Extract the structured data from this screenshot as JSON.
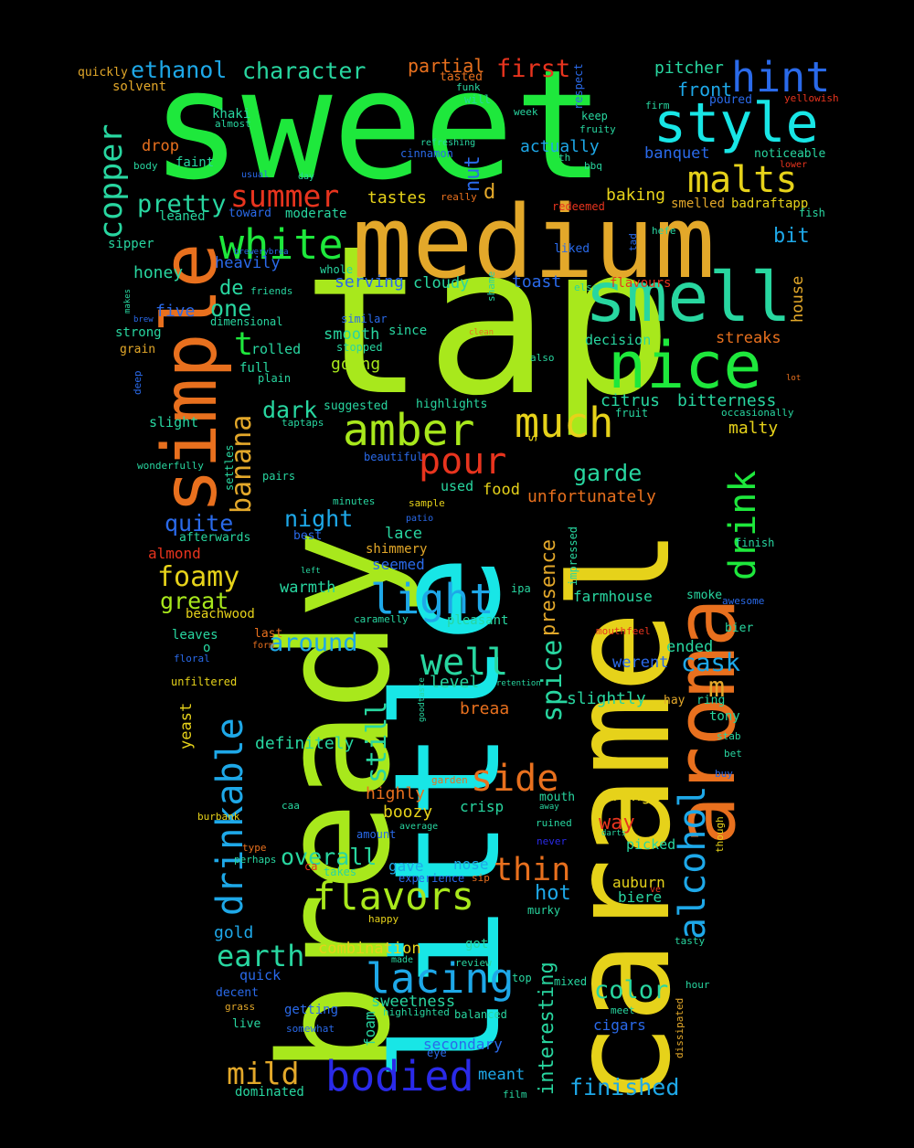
{
  "palette": {
    "green": "#1ee83c",
    "lime": "#a8e81c",
    "yellow": "#e6d21a",
    "gold": "#e3a82a",
    "orange": "#e8701e",
    "red": "#e8341e",
    "cyan": "#18e6e6",
    "teal": "#28d6a0",
    "sky": "#1ea8e8",
    "blue": "#2a6aea",
    "indigo": "#2a2ae8",
    "mint": "#3ae070"
  },
  "words": [
    {
      "t": "sweet",
      "c": "green"
    },
    {
      "t": "tap",
      "c": "lime"
    },
    {
      "t": "medium",
      "c": "gold"
    },
    {
      "t": "bready",
      "c": "lime"
    },
    {
      "t": "little",
      "c": "cyan"
    },
    {
      "t": "caramel",
      "c": "yellow"
    },
    {
      "t": "aroma",
      "c": "orange"
    },
    {
      "t": "simple",
      "c": "orange"
    },
    {
      "t": "smell",
      "c": "teal"
    },
    {
      "t": "nice",
      "c": "green"
    },
    {
      "t": "style",
      "c": "cyan"
    },
    {
      "t": "hint",
      "c": "blue"
    },
    {
      "t": "malts",
      "c": "yellow"
    },
    {
      "t": "amber",
      "c": "lime"
    },
    {
      "t": "much",
      "c": "yellow"
    },
    {
      "t": "pour",
      "c": "red"
    },
    {
      "t": "white",
      "c": "green"
    },
    {
      "t": "summer",
      "c": "red"
    },
    {
      "t": "pretty",
      "c": "teal"
    },
    {
      "t": "copper",
      "c": "teal"
    },
    {
      "t": "ethanol",
      "c": "sky"
    },
    {
      "t": "character",
      "c": "teal"
    },
    {
      "t": "partial",
      "c": "orange"
    },
    {
      "t": "first",
      "c": "red"
    },
    {
      "t": "pitcher",
      "c": "teal"
    },
    {
      "t": "front",
      "c": "sky"
    },
    {
      "t": "drinkable",
      "c": "sky"
    },
    {
      "t": "banana",
      "c": "gold"
    },
    {
      "t": "alcohol",
      "c": "sky"
    },
    {
      "t": "drink",
      "c": "green"
    },
    {
      "t": "flavors",
      "c": "lime"
    },
    {
      "t": "lacing",
      "c": "sky"
    },
    {
      "t": "light",
      "c": "sky"
    },
    {
      "t": "well",
      "c": "teal"
    },
    {
      "t": "side",
      "c": "orange"
    },
    {
      "t": "thin",
      "c": "orange"
    },
    {
      "t": "bodied",
      "c": "indigo"
    },
    {
      "t": "mild",
      "c": "gold"
    },
    {
      "t": "foamy",
      "c": "yellow"
    },
    {
      "t": "great",
      "c": "lime"
    },
    {
      "t": "earth",
      "c": "teal"
    },
    {
      "t": "around",
      "c": "sky"
    },
    {
      "t": "cask",
      "c": "sky"
    },
    {
      "t": "m",
      "c": "gold"
    },
    {
      "t": "finished",
      "c": "sky"
    },
    {
      "t": "color",
      "c": "teal"
    },
    {
      "t": "overall",
      "c": "teal"
    },
    {
      "t": "still",
      "c": "teal"
    },
    {
      "t": "spice",
      "c": "teal"
    },
    {
      "t": "presence",
      "c": "gold"
    },
    {
      "t": "interesting",
      "c": "teal"
    },
    {
      "t": "garde",
      "c": "teal"
    },
    {
      "t": "unfortunately",
      "c": "orange"
    },
    {
      "t": "quite",
      "c": "blue"
    },
    {
      "t": "night",
      "c": "sky"
    },
    {
      "t": "one",
      "c": "teal"
    },
    {
      "t": "de",
      "c": "teal"
    },
    {
      "t": "t",
      "c": "green"
    },
    {
      "t": "dark",
      "c": "teal"
    },
    {
      "t": "bitterness",
      "c": "teal"
    },
    {
      "t": "citrus",
      "c": "teal"
    },
    {
      "t": "malty",
      "c": "yellow"
    },
    {
      "t": "tastes",
      "c": "yellow"
    },
    {
      "t": "baking",
      "c": "yellow"
    },
    {
      "t": "nut",
      "c": "blue"
    },
    {
      "t": "d",
      "c": "gold"
    },
    {
      "t": "bit",
      "c": "sky"
    },
    {
      "t": "toast",
      "c": "blue"
    },
    {
      "t": "serving",
      "c": "blue"
    },
    {
      "t": "cloudy",
      "c": "teal"
    },
    {
      "t": "smooth",
      "c": "teal"
    },
    {
      "t": "going",
      "c": "lime"
    },
    {
      "t": "streaks",
      "c": "orange"
    },
    {
      "t": "decision",
      "c": "teal"
    },
    {
      "t": "actually",
      "c": "sky"
    },
    {
      "t": "banquet",
      "c": "blue"
    },
    {
      "t": "honey",
      "c": "teal"
    },
    {
      "t": "heavily",
      "c": "blue"
    },
    {
      "t": "five",
      "c": "blue"
    },
    {
      "t": "house",
      "c": "gold"
    },
    {
      "t": "drop",
      "c": "orange"
    },
    {
      "t": "faint",
      "c": "teal"
    },
    {
      "t": "khaki",
      "c": "teal"
    },
    {
      "t": "sipper",
      "c": "teal"
    },
    {
      "t": "leaned",
      "c": "teal"
    },
    {
      "t": "toward",
      "c": "blue"
    },
    {
      "t": "moderate",
      "c": "teal"
    },
    {
      "t": "smelled",
      "c": "gold"
    },
    {
      "t": "badraftapp",
      "c": "yellow"
    },
    {
      "t": "solvent",
      "c": "gold"
    },
    {
      "t": "quickly",
      "c": "gold"
    },
    {
      "t": "rolled",
      "c": "teal"
    },
    {
      "t": "full",
      "c": "teal"
    },
    {
      "t": "strong",
      "c": "teal"
    },
    {
      "t": "grain",
      "c": "gold"
    },
    {
      "t": "slight",
      "c": "teal"
    },
    {
      "t": "almond",
      "c": "red"
    },
    {
      "t": "afterwards",
      "c": "teal"
    },
    {
      "t": "best",
      "c": "blue"
    },
    {
      "t": "lace",
      "c": "teal"
    },
    {
      "t": "shimmery",
      "c": "gold"
    },
    {
      "t": "seemed",
      "c": "blue"
    },
    {
      "t": "warmth",
      "c": "teal"
    },
    {
      "t": "food",
      "c": "yellow"
    },
    {
      "t": "used",
      "c": "teal"
    },
    {
      "t": "s",
      "c": "yellow"
    },
    {
      "t": "highlights",
      "c": "teal"
    },
    {
      "t": "suggested",
      "c": "teal"
    },
    {
      "t": "pleasant",
      "c": "teal"
    },
    {
      "t": "farmhouse",
      "c": "teal"
    },
    {
      "t": "level",
      "c": "teal"
    },
    {
      "t": "breaa",
      "c": "orange"
    },
    {
      "t": "slightly",
      "c": "teal"
    },
    {
      "t": "werent",
      "c": "blue"
    },
    {
      "t": "ended",
      "c": "teal"
    },
    {
      "t": "definitely",
      "c": "teal"
    },
    {
      "t": "yeast",
      "c": "yellow"
    },
    {
      "t": "beachwood",
      "c": "yellow"
    },
    {
      "t": "leaves",
      "c": "teal"
    },
    {
      "t": "o",
      "c": "teal"
    },
    {
      "t": "highly",
      "c": "orange"
    },
    {
      "t": "boozy",
      "c": "yellow"
    },
    {
      "t": "crisp",
      "c": "teal"
    },
    {
      "t": "orange",
      "c": "yellow"
    },
    {
      "t": "way",
      "c": "red"
    },
    {
      "t": "gave",
      "c": "sky"
    },
    {
      "t": "nose",
      "c": "sky"
    },
    {
      "t": "hot",
      "c": "sky"
    },
    {
      "t": "auburn",
      "c": "yellow"
    },
    {
      "t": "biere",
      "c": "teal"
    },
    {
      "t": "gold",
      "c": "sky"
    },
    {
      "t": "combination",
      "c": "yellow"
    },
    {
      "t": "got",
      "c": "teal"
    },
    {
      "t": "quick",
      "c": "blue"
    },
    {
      "t": "decent",
      "c": "blue"
    },
    {
      "t": "live",
      "c": "teal"
    },
    {
      "t": "getting",
      "c": "blue"
    },
    {
      "t": "sweetness",
      "c": "teal"
    },
    {
      "t": "foam",
      "c": "teal"
    },
    {
      "t": "secondary",
      "c": "blue"
    },
    {
      "t": "meant",
      "c": "sky"
    },
    {
      "t": "dominated",
      "c": "teal"
    },
    {
      "t": "cigars",
      "c": "blue"
    },
    {
      "t": "picked",
      "c": "teal"
    },
    {
      "t": "tony",
      "c": "teal"
    },
    {
      "t": "bier",
      "c": "teal"
    },
    {
      "t": "ring",
      "c": "teal"
    },
    {
      "t": "hay",
      "c": "gold"
    },
    {
      "t": "smoke",
      "c": "teal"
    },
    {
      "t": "finish",
      "c": "teal"
    },
    {
      "t": "impressed",
      "c": "teal"
    },
    {
      "t": "retention",
      "c": "teal"
    },
    {
      "t": "goodtaste",
      "c": "teal"
    },
    {
      "t": "ipa",
      "c": "teal"
    },
    {
      "t": "caramelly",
      "c": "teal"
    },
    {
      "t": "last",
      "c": "orange"
    },
    {
      "t": "form",
      "c": "orange"
    },
    {
      "t": "floral",
      "c": "blue"
    },
    {
      "t": "unfiltered",
      "c": "yellow"
    },
    {
      "t": "mouthfeel",
      "c": "red"
    },
    {
      "t": "awesome",
      "c": "blue"
    },
    {
      "t": "stab",
      "c": "teal"
    },
    {
      "t": "bet",
      "c": "teal"
    },
    {
      "t": "buy",
      "c": "blue"
    },
    {
      "t": "though",
      "c": "yellow"
    },
    {
      "t": "mouth",
      "c": "teal"
    },
    {
      "t": "darts",
      "c": "teal"
    },
    {
      "t": "ruined",
      "c": "teal"
    },
    {
      "t": "away",
      "c": "teal"
    },
    {
      "t": "never",
      "c": "indigo"
    },
    {
      "t": "garden",
      "c": "orange"
    },
    {
      "t": "caa",
      "c": "teal"
    },
    {
      "t": "burbank",
      "c": "yellow"
    },
    {
      "t": "average",
      "c": "teal"
    },
    {
      "t": "amount",
      "c": "blue"
    },
    {
      "t": "type",
      "c": "orange"
    },
    {
      "t": "perhaps",
      "c": "teal"
    },
    {
      "t": "ca",
      "c": "red"
    },
    {
      "t": "takes",
      "c": "teal"
    },
    {
      "t": "experience",
      "c": "blue"
    },
    {
      "t": "sip",
      "c": "orange"
    },
    {
      "t": "ve",
      "c": "red"
    },
    {
      "t": "murky",
      "c": "teal"
    },
    {
      "t": "happy",
      "c": "yellow"
    },
    {
      "t": "made",
      "c": "teal"
    },
    {
      "t": "review",
      "c": "teal"
    },
    {
      "t": "top",
      "c": "teal"
    },
    {
      "t": "mixed",
      "c": "teal"
    },
    {
      "t": "tasty",
      "c": "teal"
    },
    {
      "t": "hour",
      "c": "teal"
    },
    {
      "t": "grass",
      "c": "gold"
    },
    {
      "t": "somewhat",
      "c": "blue"
    },
    {
      "t": "highlighted",
      "c": "teal"
    },
    {
      "t": "balanced",
      "c": "teal"
    },
    {
      "t": "meet",
      "c": "teal"
    },
    {
      "t": "dissipated",
      "c": "gold"
    },
    {
      "t": "eye",
      "c": "blue"
    },
    {
      "t": "film",
      "c": "teal"
    },
    {
      "t": "tasted",
      "c": "orange"
    },
    {
      "t": "funk",
      "c": "teal"
    },
    {
      "t": "will",
      "c": "teal"
    },
    {
      "t": "week",
      "c": "teal"
    },
    {
      "t": "respect",
      "c": "blue"
    },
    {
      "t": "keep",
      "c": "teal"
    },
    {
      "t": "fruity",
      "c": "teal"
    },
    {
      "t": "bbq",
      "c": "teal"
    },
    {
      "t": "th",
      "c": "teal"
    },
    {
      "t": "refreshing",
      "c": "teal"
    },
    {
      "t": "cinnamon",
      "c": "blue"
    },
    {
      "t": "firm",
      "c": "teal"
    },
    {
      "t": "poured",
      "c": "blue"
    },
    {
      "t": "yellowish",
      "c": "red"
    },
    {
      "t": "noticeable",
      "c": "teal"
    },
    {
      "t": "lower",
      "c": "red"
    },
    {
      "t": "fish",
      "c": "teal"
    },
    {
      "t": "almost",
      "c": "teal"
    },
    {
      "t": "body",
      "c": "teal"
    },
    {
      "t": "usual",
      "c": "blue"
    },
    {
      "t": "day",
      "c": "teal"
    },
    {
      "t": "really",
      "c": "orange"
    },
    {
      "t": "redeemed",
      "c": "red"
    },
    {
      "t": "liked",
      "c": "blue"
    },
    {
      "t": "tad",
      "c": "blue"
    },
    {
      "t": "hefe",
      "c": "teal"
    },
    {
      "t": "flavours",
      "c": "red"
    },
    {
      "t": "else",
      "c": "teal"
    },
    {
      "t": "brewerybrea",
      "c": "blue"
    },
    {
      "t": "whole",
      "c": "teal"
    },
    {
      "t": "friends",
      "c": "teal"
    },
    {
      "t": "makes",
      "c": "teal"
    },
    {
      "t": "shame",
      "c": "teal"
    },
    {
      "t": "dimensional",
      "c": "teal"
    },
    {
      "t": "similar",
      "c": "blue"
    },
    {
      "t": "since",
      "c": "teal"
    },
    {
      "t": "clean",
      "c": "orange"
    },
    {
      "t": "stopped",
      "c": "teal"
    },
    {
      "t": "also",
      "c": "teal"
    },
    {
      "t": "lot",
      "c": "orange"
    },
    {
      "t": "deep",
      "c": "blue"
    },
    {
      "t": "plain",
      "c": "teal"
    },
    {
      "t": "fruit",
      "c": "teal"
    },
    {
      "t": "occasionally",
      "c": "teal"
    },
    {
      "t": "taptaps",
      "c": "teal"
    },
    {
      "t": "settles",
      "c": "teal"
    },
    {
      "t": "wonderfully",
      "c": "teal"
    },
    {
      "t": "beautiful",
      "c": "blue"
    },
    {
      "t": "pairs",
      "c": "teal"
    },
    {
      "t": "minutes",
      "c": "teal"
    },
    {
      "t": "sample",
      "c": "yellow"
    },
    {
      "t": "patio",
      "c": "blue"
    },
    {
      "t": "left",
      "c": "teal"
    },
    {
      "t": "brew",
      "c": "blue"
    }
  ]
}
